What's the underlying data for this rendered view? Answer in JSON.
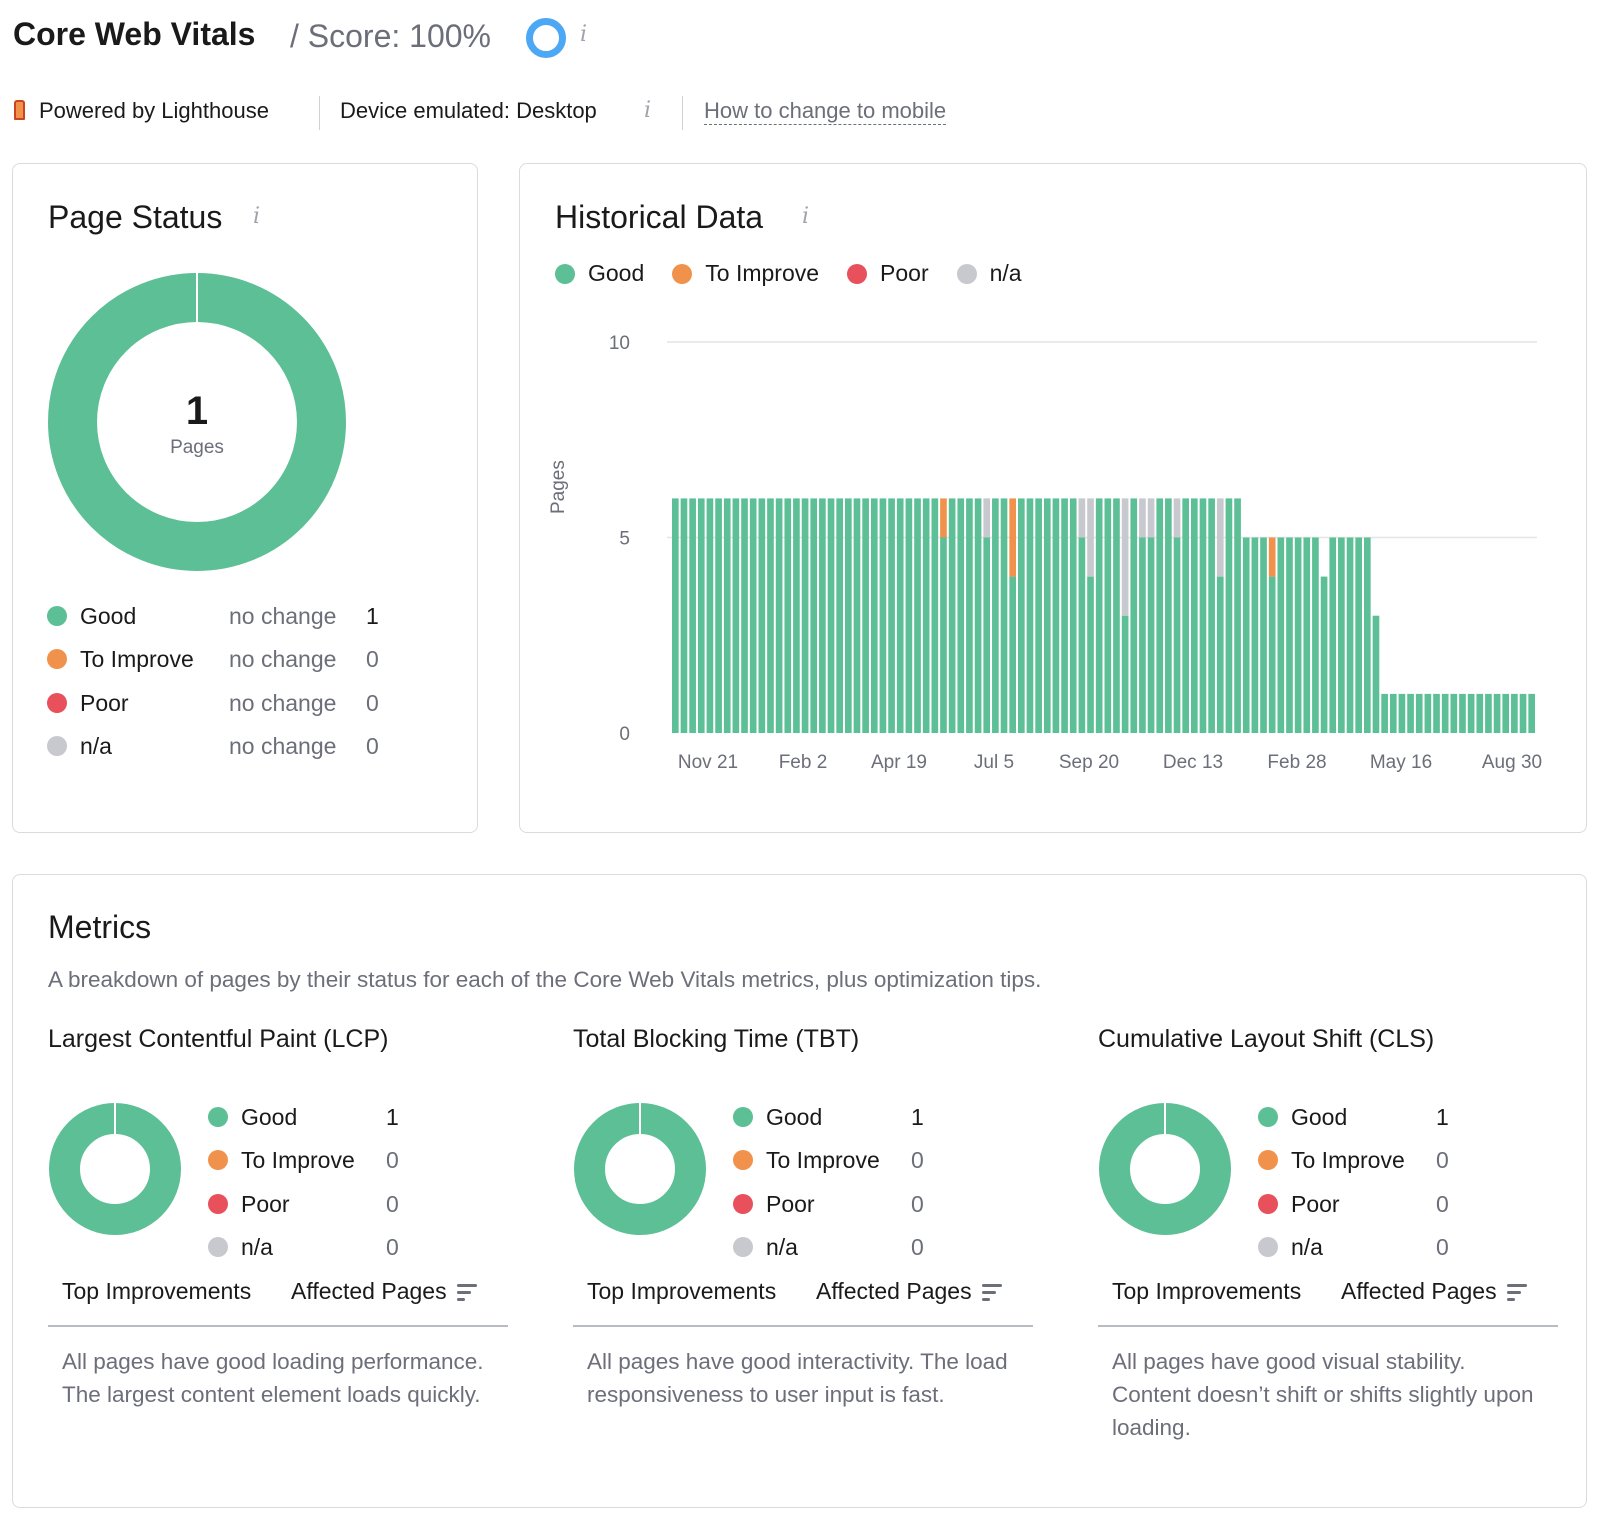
{
  "header": {
    "title": "Core Web Vitals",
    "score_label": "/ Score: 100%",
    "score_icon": "score-ring-icon",
    "powered_by": "Powered by Lighthouse",
    "device": "Device emulated: Desktop",
    "mobile_link": "How to change to mobile"
  },
  "colors": {
    "good": "#5cbf95",
    "improve": "#f0924b",
    "poor": "#e8505b",
    "na": "#c7c9cf",
    "accent": "#4ca7f5"
  },
  "page_status": {
    "title": "Page Status",
    "total": "1",
    "total_label": "Pages",
    "rows": [
      {
        "label": "Good",
        "change": "no change",
        "value": "1"
      },
      {
        "label": "To Improve",
        "change": "no change",
        "value": "0"
      },
      {
        "label": "Poor",
        "change": "no change",
        "value": "0"
      },
      {
        "label": "n/a",
        "change": "no change",
        "value": "0"
      }
    ]
  },
  "historical": {
    "title": "Historical Data",
    "legend": [
      "Good",
      "To Improve",
      "Poor",
      "n/a"
    ]
  },
  "chart_data": {
    "type": "bar",
    "stacked": true,
    "ylabel": "Pages",
    "ylim": [
      0,
      10
    ],
    "yticks": [
      "0",
      "5",
      "10"
    ],
    "xtick_labels": [
      "Nov 21",
      "Feb 2",
      "Apr 19",
      "Jul 5",
      "Sep 20",
      "Dec 13",
      "Feb 28",
      "May 16",
      "Aug 30"
    ],
    "grid": true,
    "legend_position": "top-left",
    "series": [
      {
        "name": "Good",
        "values": [
          6,
          6,
          6,
          6,
          6,
          6,
          6,
          6,
          6,
          6,
          6,
          6,
          6,
          6,
          6,
          6,
          6,
          6,
          6,
          6,
          6,
          6,
          6,
          6,
          6,
          6,
          6,
          6,
          6,
          6,
          6,
          5,
          6,
          6,
          6,
          6,
          5,
          6,
          6,
          4,
          6,
          6,
          6,
          6,
          6,
          6,
          6,
          5,
          4,
          6,
          6,
          6,
          3,
          6,
          5,
          5,
          6,
          6,
          5,
          6,
          6,
          6,
          6,
          4,
          6,
          6,
          5,
          5,
          5,
          4,
          5,
          5,
          5,
          5,
          5,
          4,
          5,
          5,
          5,
          5,
          5,
          3,
          1,
          1,
          1,
          1,
          1,
          1,
          1,
          1,
          1,
          1,
          1,
          1,
          1,
          1,
          1,
          1,
          1,
          1
        ]
      },
      {
        "name": "To Improve",
        "values": [
          0,
          0,
          0,
          0,
          0,
          0,
          0,
          0,
          0,
          0,
          0,
          0,
          0,
          0,
          0,
          0,
          0,
          0,
          0,
          0,
          0,
          0,
          0,
          0,
          0,
          0,
          0,
          0,
          0,
          0,
          0,
          1,
          0,
          0,
          0,
          0,
          0,
          0,
          0,
          2,
          0,
          0,
          0,
          0,
          0,
          0,
          0,
          0,
          0,
          0,
          0,
          0,
          0,
          0,
          0,
          0,
          0,
          0,
          0,
          0,
          0,
          0,
          0,
          0,
          0,
          0,
          0,
          0,
          0,
          1,
          0,
          0,
          0,
          0,
          0,
          0,
          0,
          0,
          0,
          0,
          0,
          0,
          0,
          0,
          0,
          0,
          0,
          0,
          0,
          0,
          0,
          0,
          0,
          0,
          0,
          0,
          0,
          0,
          0,
          0
        ]
      },
      {
        "name": "Poor",
        "values": [
          0,
          0,
          0,
          0,
          0,
          0,
          0,
          0,
          0,
          0,
          0,
          0,
          0,
          0,
          0,
          0,
          0,
          0,
          0,
          0,
          0,
          0,
          0,
          0,
          0,
          0,
          0,
          0,
          0,
          0,
          0,
          0,
          0,
          0,
          0,
          0,
          0,
          0,
          0,
          0,
          0,
          0,
          0,
          0,
          0,
          0,
          0,
          0,
          0,
          0,
          0,
          0,
          0,
          0,
          0,
          0,
          0,
          0,
          0,
          0,
          0,
          0,
          0,
          0,
          0,
          0,
          0,
          0,
          0,
          0,
          0,
          0,
          0,
          0,
          0,
          0,
          0,
          0,
          0,
          0,
          0,
          0,
          0,
          0,
          0,
          0,
          0,
          0,
          0,
          0,
          0,
          0,
          0,
          0,
          0,
          0,
          0,
          0,
          0,
          0
        ]
      },
      {
        "name": "n/a",
        "values": [
          0,
          0,
          0,
          0,
          0,
          0,
          0,
          0,
          0,
          0,
          0,
          0,
          0,
          0,
          0,
          0,
          0,
          0,
          0,
          0,
          0,
          0,
          0,
          0,
          0,
          0,
          0,
          0,
          0,
          0,
          0,
          0,
          0,
          0,
          0,
          0,
          1,
          0,
          0,
          0,
          0,
          0,
          0,
          0,
          0,
          0,
          0,
          1,
          2,
          0,
          0,
          0,
          3,
          0,
          1,
          1,
          0,
          0,
          1,
          0,
          0,
          0,
          0,
          2,
          0,
          0,
          0,
          0,
          0,
          0,
          0,
          0,
          0,
          0,
          0,
          0,
          0,
          0,
          0,
          0,
          0,
          0,
          0,
          0,
          0,
          0,
          0,
          0,
          0,
          0,
          0,
          0,
          0,
          0,
          0,
          0,
          0,
          0,
          0,
          0
        ]
      }
    ]
  },
  "metrics": {
    "title": "Metrics",
    "description": "A breakdown of pages by their status for each of the Core Web Vitals metrics, plus optimization tips.",
    "tab_top": "Top Improvements",
    "tab_affected": "Affected Pages",
    "items": [
      {
        "title": "Largest Contentful Paint (LCP)",
        "rows": [
          {
            "label": "Good",
            "value": "1"
          },
          {
            "label": "To Improve",
            "value": "0"
          },
          {
            "label": "Poor",
            "value": "0"
          },
          {
            "label": "n/a",
            "value": "0"
          }
        ],
        "text": "All pages have good loading performance. The largest content element loads quickly."
      },
      {
        "title": "Total Blocking Time (TBT)",
        "rows": [
          {
            "label": "Good",
            "value": "1"
          },
          {
            "label": "To Improve",
            "value": "0"
          },
          {
            "label": "Poor",
            "value": "0"
          },
          {
            "label": "n/a",
            "value": "0"
          }
        ],
        "text": "All pages have good interactivity. The load responsiveness to user input is fast."
      },
      {
        "title": "Cumulative Layout Shift (CLS)",
        "rows": [
          {
            "label": "Good",
            "value": "1"
          },
          {
            "label": "To Improve",
            "value": "0"
          },
          {
            "label": "Poor",
            "value": "0"
          },
          {
            "label": "n/a",
            "value": "0"
          }
        ],
        "text": "All pages have good visual stability. Content doesn’t shift or shifts slightly upon loading."
      }
    ]
  }
}
